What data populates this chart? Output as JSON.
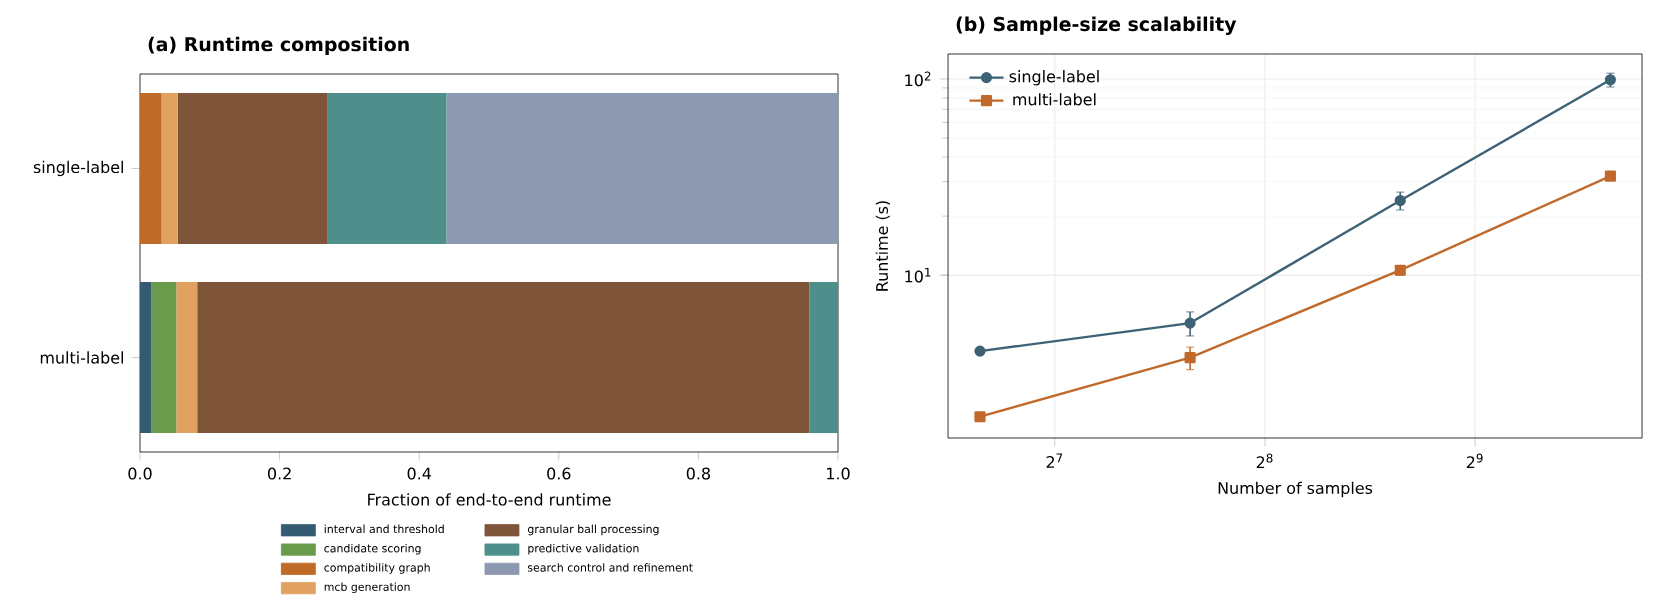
{
  "chart_data": [
    {
      "type": "bar",
      "title": "(a) Runtime composition",
      "xlabel": "Fraction of end-to-end runtime",
      "orientation": "horizontal",
      "stacked": true,
      "legend": "bottom",
      "categories": [
        "single-label",
        "multi-label"
      ],
      "xlim": [
        0,
        1
      ],
      "xticks": [
        {
          "value": 0,
          "label": "0.0"
        },
        0.2,
        0.4,
        0.6,
        0.8,
        {
          "value": 1,
          "label": "1.0"
        }
      ],
      "series": [
        {
          "name": "interval and threshold",
          "color": "#345b72",
          "values": [
            0,
            0.016
          ]
        },
        {
          "name": "candidate scoring",
          "color": "#6a9a4b",
          "values": [
            0,
            0.036
          ]
        },
        {
          "name": "compatibility graph",
          "color": "#c06a27",
          "values": [
            0.031,
            0
          ]
        },
        {
          "name": "mcb generation",
          "color": "#e1a261",
          "values": [
            0.023,
            0.03
          ]
        },
        {
          "name": "granular ball processing",
          "color": "#7e5539",
          "values": [
            0.214,
            0.877
          ]
        },
        {
          "name": "predictive validation",
          "color": "#4e8f8b",
          "values": [
            0.171,
            0.041
          ]
        },
        {
          "name": "search control and refinement",
          "color": "#8d99b0",
          "values": [
            0.561,
            0
          ]
        }
      ]
    },
    {
      "type": "line",
      "title": "(b) Sample-size scalability",
      "xlabel": "Number of samples",
      "ylabel": "Runtime (s)",
      "log": "xy",
      "grid": true,
      "legend": "top left",
      "x": [
        100,
        200,
        400,
        800
      ],
      "xlim": [
        90,
        888
      ],
      "ylim": [
        1.48,
        134
      ],
      "xticks": [
        {
          "value": 128,
          "label": "2$^{7}$"
        },
        {
          "value": 256,
          "label": "2$^{8}$"
        },
        {
          "value": 512,
          "label": "2$^{9}$"
        }
      ],
      "yticks": [
        {
          "value": 10,
          "label": "10$^{1}$"
        },
        {
          "value": 100,
          "label": "10$^{2}$"
        }
      ],
      "series": [
        {
          "name": "single-label",
          "color": "#3d6275",
          "marker": "circle",
          "values": [
            4.1,
            5.7,
            24,
            99
          ],
          "errors": [
            null,
            0.8,
            2.5,
            8
          ]
        },
        {
          "name": "multi-label",
          "color": "#c0692a",
          "marker": "square",
          "values": [
            1.9,
            3.8,
            10.6,
            32
          ],
          "errors": [
            null,
            0.5,
            0.6,
            null
          ]
        }
      ]
    }
  ]
}
